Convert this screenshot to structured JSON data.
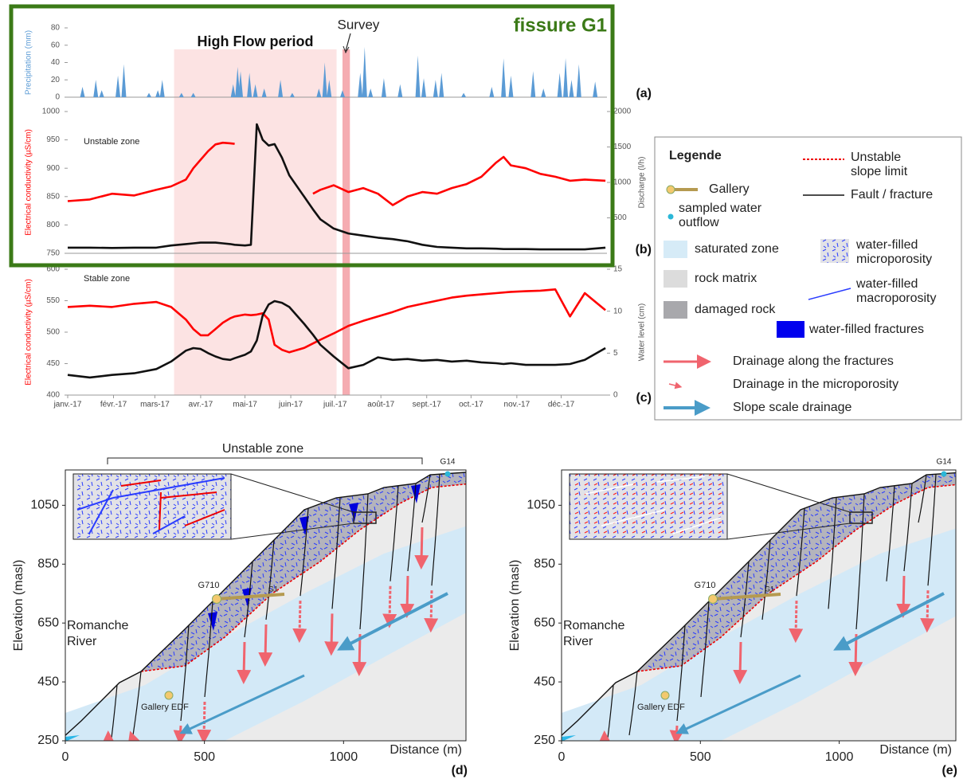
{
  "title": "fissure G1",
  "chart_data": [
    {
      "type": "area",
      "panel_label": "(a)",
      "y_label": "Precipitation (mm)",
      "color": "#5b9bd5",
      "x": [
        10,
        19,
        23,
        34,
        38,
        55,
        61,
        64,
        77,
        85,
        112,
        115,
        117,
        123,
        127,
        133,
        144,
        152,
        170,
        174,
        177,
        186,
        198,
        201,
        205,
        214,
        225,
        237,
        241,
        249,
        253,
        268,
        287,
        295,
        300,
        315,
        322,
        333,
        337,
        341,
        346,
        357
      ],
      "values": [
        12,
        20,
        8,
        25,
        38,
        5,
        8,
        20,
        5,
        5,
        15,
        35,
        30,
        28,
        15,
        10,
        20,
        5,
        10,
        40,
        20,
        8,
        28,
        58,
        10,
        22,
        15,
        48,
        22,
        20,
        28,
        5,
        12,
        45,
        25,
        30,
        10,
        28,
        45,
        20,
        38,
        18
      ],
      "xlim": [
        0,
        365
      ],
      "ylim": [
        0,
        80
      ],
      "yticks": [
        0,
        20,
        40,
        60,
        80
      ],
      "annotations": [
        {
          "text": "High Flow period",
          "x_range": [
            72,
            182
          ]
        },
        {
          "text": "Survey",
          "x_range": [
            186,
            191
          ]
        }
      ]
    },
    {
      "type": "line",
      "panel_label": "(b)",
      "zone_label": "Unstable zone",
      "y_label": "Electrical conductivity (µS/cm)",
      "y2_label": "Discharge (l/h)",
      "x": [
        0,
        15,
        30,
        45,
        60,
        70,
        80,
        85,
        90,
        95,
        100,
        105,
        110,
        113,
        120,
        124,
        128,
        132,
        136,
        140,
        145,
        150,
        160,
        166,
        171,
        180,
        190,
        200,
        210,
        220,
        230,
        240,
        250,
        260,
        270,
        280,
        290,
        295,
        300,
        310,
        320,
        330,
        340,
        350,
        364
      ],
      "series": [
        {
          "color": "#ff0000",
          "values": [
            842,
            845,
            855,
            852,
            862,
            868,
            880,
            900,
            915,
            930,
            942,
            945,
            944,
            943,
            null,
            null,
            null,
            null,
            null,
            null,
            null,
            null,
            null,
            855,
            862,
            870,
            858,
            865,
            855,
            835,
            850,
            858,
            855,
            865,
            872,
            885,
            910,
            920,
            905,
            900,
            890,
            885,
            878,
            880,
            878
          ]
        },
        {
          "color": "#111111",
          "axis": "y2",
          "values": [
            80,
            80,
            75,
            80,
            80,
            110,
            130,
            140,
            150,
            150,
            150,
            140,
            130,
            120,
            110,
            120,
            1820,
            1600,
            1520,
            1540,
            1350,
            1100,
            800,
            620,
            480,
            350,
            280,
            250,
            220,
            200,
            170,
            120,
            90,
            80,
            70,
            70,
            65,
            60,
            60,
            60,
            55,
            55,
            55,
            55,
            80
          ]
        }
      ],
      "xlim": [
        0,
        365
      ],
      "ylim": [
        750,
        1000
      ],
      "yticks": [
        750,
        800,
        850,
        900,
        950,
        1000
      ],
      "y2lim": [
        0,
        2000
      ],
      "y2ticks": [
        500,
        1000,
        1500,
        2000
      ]
    },
    {
      "type": "line",
      "panel_label": "(c)",
      "zone_label": "Stable zone",
      "y_label": "Electrical conductivity (µS/cm)",
      "y2_label": "Water level (cm)",
      "x": [
        0,
        15,
        30,
        45,
        60,
        70,
        80,
        85,
        90,
        95,
        100,
        105,
        110,
        113,
        120,
        124,
        128,
        132,
        136,
        140,
        145,
        150,
        160,
        166,
        171,
        180,
        190,
        200,
        210,
        220,
        230,
        240,
        250,
        260,
        270,
        280,
        290,
        295,
        300,
        310,
        320,
        330,
        340,
        350,
        364
      ],
      "series": [
        {
          "color": "#ff0000",
          "values": [
            540,
            542,
            540,
            545,
            548,
            540,
            520,
            505,
            495,
            495,
            505,
            515,
            522,
            525,
            528,
            527,
            528,
            530,
            520,
            480,
            472,
            468,
            475,
            482,
            488,
            498,
            510,
            518,
            525,
            532,
            540,
            545,
            550,
            555,
            558,
            560,
            562,
            563,
            564,
            565,
            566,
            568,
            525,
            562,
            535
          ]
        },
        {
          "color": "#111111",
          "axis": "y2",
          "values": [
            2.4,
            2.1,
            2.4,
            2.6,
            3.1,
            4.0,
            5.3,
            5.6,
            5.5,
            5.0,
            4.6,
            4.3,
            4.2,
            4.4,
            4.8,
            5.2,
            6.5,
            9.5,
            10.8,
            11.2,
            11.0,
            10.5,
            8.5,
            7.2,
            6.0,
            4.6,
            3.2,
            3.6,
            4.5,
            4.2,
            4.3,
            4.1,
            4.2,
            4.0,
            4.1,
            3.9,
            3.8,
            3.7,
            3.8,
            3.6,
            3.6,
            3.6,
            3.7,
            4.2,
            5.6
          ]
        }
      ],
      "xlim": [
        0,
        365
      ],
      "ylim": [
        400,
        600
      ],
      "yticks": [
        400,
        450,
        500,
        550,
        600
      ],
      "y2lim": [
        0,
        15
      ],
      "y2ticks": [
        0,
        5,
        10,
        15
      ],
      "xticks": [
        {
          "value": 0,
          "label": "janv.-17"
        },
        {
          "value": 31,
          "label": "févr.-17"
        },
        {
          "value": 59,
          "label": "mars-17"
        },
        {
          "value": 90,
          "label": "avr.-17"
        },
        {
          "value": 120,
          "label": "mai-17"
        },
        {
          "value": 151,
          "label": "juin-17"
        },
        {
          "value": 181,
          "label": "juil.-17"
        },
        {
          "value": 212,
          "label": "août-17"
        },
        {
          "value": 243,
          "label": "sept.-17"
        },
        {
          "value": 273,
          "label": "oct.-17"
        },
        {
          "value": 304,
          "label": "nov.-17"
        },
        {
          "value": 334,
          "label": "déc.-17"
        }
      ]
    },
    {
      "type": "section",
      "panel_label": "(d)",
      "x_label": "Distance (m)",
      "y_label": "Elevation (masl)",
      "xlim": [
        0,
        1440
      ],
      "ylim": [
        250,
        1170
      ],
      "xticks": [
        0,
        500,
        1000
      ],
      "yticks": [
        250,
        450,
        650,
        850,
        1050
      ],
      "labels": {
        "zone": "Unstable zone",
        "spring": "G14",
        "gallery_1": "G710",
        "gallery_2": "G1",
        "river": [
          "Romanche",
          "River"
        ],
        "gallery_edf": "Gallery EDF"
      }
    },
    {
      "type": "section",
      "panel_label": "(e)",
      "x_label": "Distance (m)",
      "y_label": "Elevation (masl)",
      "xlim": [
        0,
        1420
      ],
      "ylim": [
        250,
        1170
      ],
      "xticks": [
        0,
        500,
        1000
      ],
      "yticks": [
        250,
        450,
        650,
        850,
        1050
      ],
      "labels": {
        "spring": "G14",
        "gallery_1": "G710",
        "gallery_2": "G1",
        "river": [
          "Romanche",
          "River"
        ],
        "gallery_edf": "Gallery EDF"
      }
    }
  ],
  "legend": {
    "title": "Legende",
    "unstable_limit": [
      "Unstable",
      "slope limit"
    ],
    "gallery": "Gallery",
    "fault": "Fault / fracture",
    "outflow": [
      "sampled water",
      "outflow"
    ],
    "saturated": "saturated zone",
    "microporosity": [
      "water-filled",
      "microporosity"
    ],
    "rock_matrix": "rock matrix",
    "macroporosity": [
      "water-filled",
      "macroporosity"
    ],
    "damaged": "damaged rock",
    "fractures": "water-filled fractures",
    "drain_fractures": "Drainage along the fractures",
    "drain_micro": "Drainage in the microporosity",
    "drain_slope": "Slope scale drainage"
  }
}
